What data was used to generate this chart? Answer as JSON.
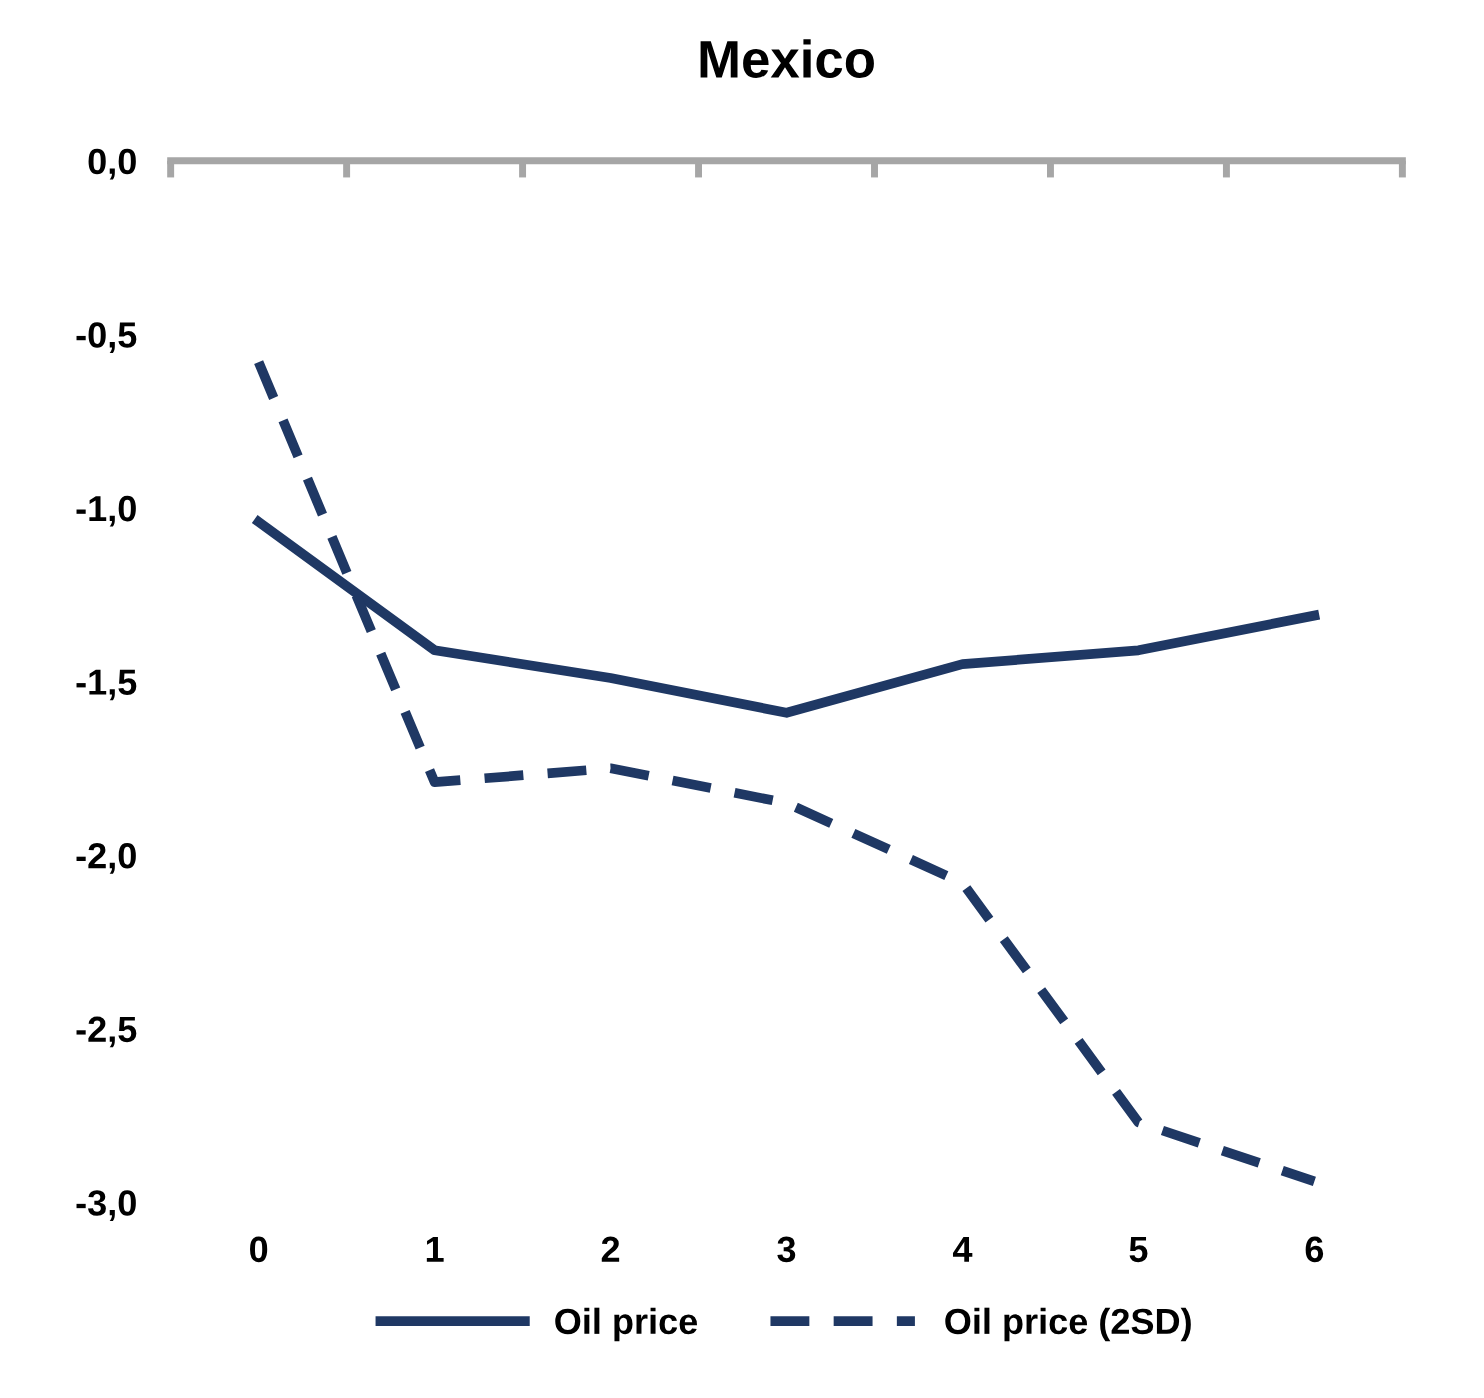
{
  "chart_data": {
    "type": "line",
    "title": "Mexico",
    "categories": [
      "0",
      "1",
      "2",
      "3",
      "4",
      "5",
      "6"
    ],
    "series": [
      {
        "name": "Oil price",
        "color": "#1f3864",
        "values": [
          -1.04,
          -1.41,
          -1.49,
          -1.59,
          -1.45,
          -1.41,
          -1.31
        ],
        "line_style": "solid"
      },
      {
        "name": "Oil price (2SD)",
        "color": "#1f3864",
        "values": [
          -0.58,
          -1.79,
          -1.75,
          -1.85,
          -2.08,
          -2.77,
          -2.94
        ],
        "line_style": "dashed"
      }
    ],
    "ylim": [
      -3.0,
      0.0
    ],
    "yticks": [
      {
        "value": -3.0,
        "label": "-3,0"
      },
      {
        "value": -2.5,
        "label": "-2,5"
      },
      {
        "value": -2.0,
        "label": "-2,0"
      },
      {
        "value": -1.5,
        "label": "-1,5"
      },
      {
        "value": -1.0,
        "label": "-1,0"
      },
      {
        "value": -0.5,
        "label": "-0,5"
      },
      {
        "value": 0.0,
        "label": "0,0"
      }
    ],
    "grid": false,
    "legend": "bottom",
    "marker": "none"
  }
}
